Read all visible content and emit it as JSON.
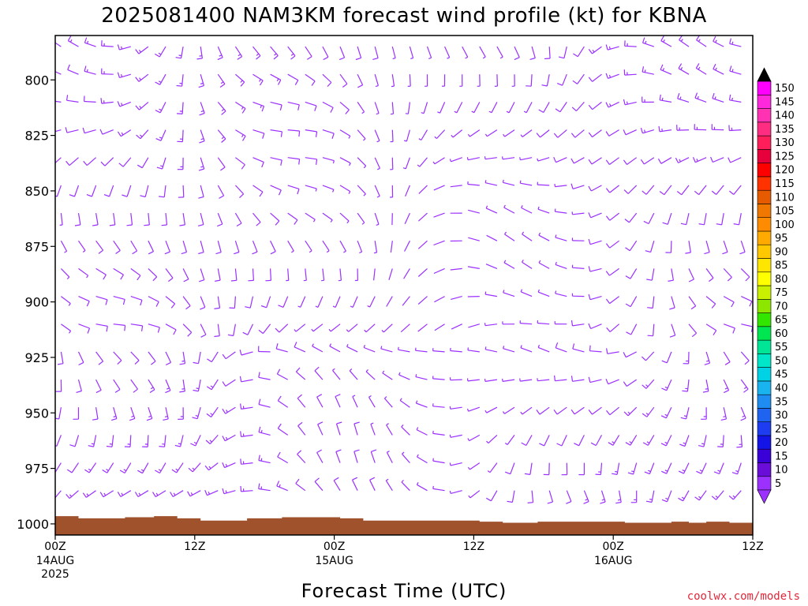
{
  "title": "2025081400 NAM3KM forecast wind profile (kt) for KBNA",
  "credit": "coolwx.com/models",
  "chart_data": {
    "type": "wind-barb-time-height",
    "title": "2025081400 NAM3KM forecast wind profile (kt) for KBNA",
    "xlabel": "Forecast Time (UTC)",
    "ylabel": "",
    "x_ticks": [
      {
        "hour": 0,
        "label": "00Z",
        "sub": [
          "14AUG",
          "2025"
        ]
      },
      {
        "hour": 12,
        "label": "12Z",
        "sub": []
      },
      {
        "hour": 24,
        "label": "00Z",
        "sub": [
          "15AUG"
        ]
      },
      {
        "hour": 36,
        "label": "12Z",
        "sub": []
      },
      {
        "hour": 48,
        "label": "00Z",
        "sub": [
          "16AUG"
        ]
      },
      {
        "hour": 60,
        "label": "12Z",
        "sub": []
      }
    ],
    "xlim": [
      0,
      60
    ],
    "y_ticks": [
      800,
      825,
      850,
      875,
      900,
      925,
      950,
      975,
      1000
    ],
    "ylim_hpa": [
      780,
      1005
    ],
    "colorbar_values": [
      5,
      10,
      15,
      20,
      25,
      30,
      35,
      40,
      45,
      50,
      55,
      60,
      65,
      70,
      75,
      80,
      85,
      90,
      95,
      100,
      105,
      110,
      115,
      120,
      125,
      130,
      135,
      140,
      145,
      150
    ],
    "colorbar_colors": [
      "#9b30ff",
      "#6a0dd8",
      "#3a00d8",
      "#1414e6",
      "#1e3cf0",
      "#1e64f0",
      "#1e8cf0",
      "#19b4f0",
      "#00d2e6",
      "#00e6c8",
      "#00e696",
      "#00e650",
      "#32e600",
      "#8ce600",
      "#c8f000",
      "#ffff00",
      "#ffe600",
      "#ffc800",
      "#ffaa00",
      "#ff8c00",
      "#f07800",
      "#e65a00",
      "#ff3200",
      "#ff0000",
      "#e6003c",
      "#ff1e5a",
      "#ff2d82",
      "#ff32b4",
      "#ff28dc",
      "#ff00ff"
    ],
    "barb_color": "#9b30ff",
    "surface_pressure": [
      {
        "hour": 0,
        "hpa": 996.5
      },
      {
        "hour": 2,
        "hpa": 997.5
      },
      {
        "hour": 6,
        "hpa": 997
      },
      {
        "hour": 8.5,
        "hpa": 996.5
      },
      {
        "hour": 10.5,
        "hpa": 997.5
      },
      {
        "hour": 12.5,
        "hpa": 998.5
      },
      {
        "hour": 16.5,
        "hpa": 997.5
      },
      {
        "hour": 19.5,
        "hpa": 997
      },
      {
        "hour": 24.5,
        "hpa": 997.5
      },
      {
        "hour": 26.5,
        "hpa": 998.5
      },
      {
        "hour": 36.5,
        "hpa": 999
      },
      {
        "hour": 38.5,
        "hpa": 999.5
      },
      {
        "hour": 41.5,
        "hpa": 999
      },
      {
        "hour": 49,
        "hpa": 999.5
      },
      {
        "hour": 53,
        "hpa": 999
      },
      {
        "hour": 54.5,
        "hpa": 999.5
      },
      {
        "hour": 56,
        "hpa": 999
      },
      {
        "hour": 58,
        "hpa": 999.5
      },
      {
        "hour": 60,
        "hpa": 999.5
      }
    ],
    "terrain_color": "#a0522d"
  }
}
